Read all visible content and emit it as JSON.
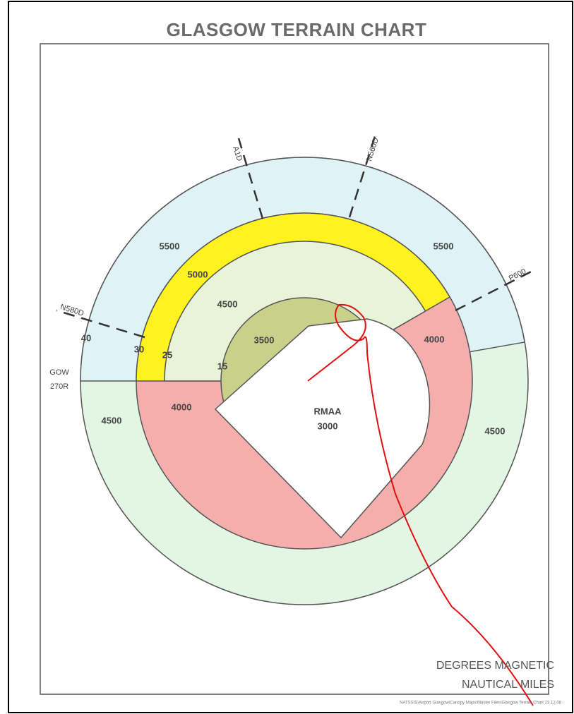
{
  "title": "GLASGOW TERRAIN CHART",
  "altitudes": [
    "5500",
    "5500",
    "5000",
    "4500",
    "3500",
    "4000",
    "4000",
    "4500",
    "4500"
  ],
  "rmaa": {
    "name": "RMAA",
    "altitude": "3000"
  },
  "routes": [
    "A1D",
    "N560D",
    "P600",
    "N580D"
  ],
  "ranges": [
    "40",
    "30",
    "25",
    "15"
  ],
  "radial": {
    "beacon": "GOW",
    "bearing": "270R"
  },
  "footer": {
    "units_bearing": "DEGREES MAGNETIC",
    "units_distance": "NAUTICAL MILES",
    "file_note": "NATSSIS\\Airport Glasgow\\Canopy Maps\\Master Files\\Glasgow Terrain Chart 23.12.08"
  }
}
